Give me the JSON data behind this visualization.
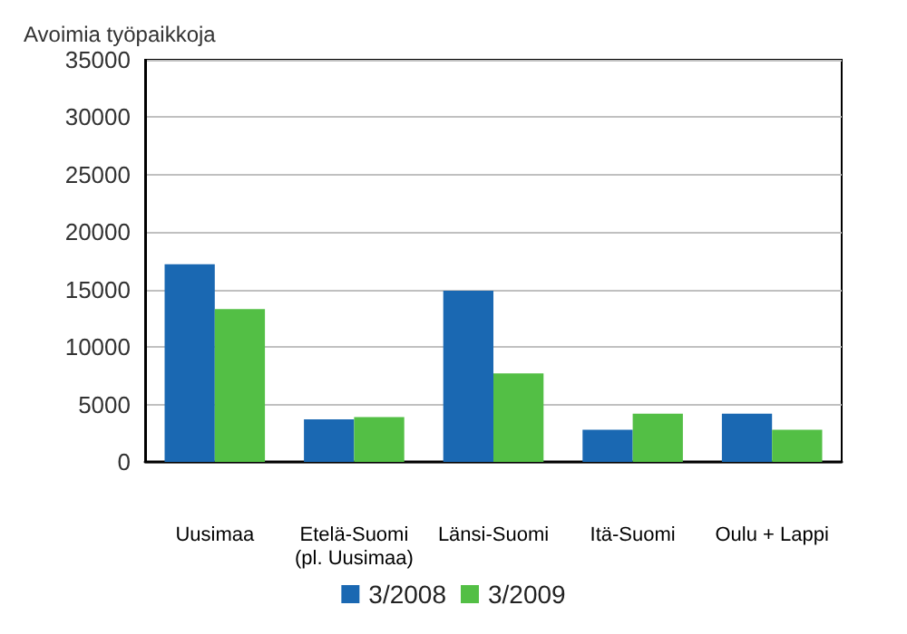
{
  "chart_data": {
    "type": "bar",
    "ylabel": "Avoimia työpaikkoja",
    "categories": [
      "Uusimaa",
      "Etelä-Suomi\n(pl. Uusimaa)",
      "Länsi-Suomi",
      "Itä-Suomi",
      "Oulu + Lappi"
    ],
    "series": [
      {
        "name": "3/2008",
        "color": "#1a68b2",
        "values": [
          17200,
          3700,
          14900,
          2800,
          4200
        ]
      },
      {
        "name": "3/2009",
        "color": "#53bf45",
        "values": [
          13300,
          3900,
          7700,
          4200,
          2800
        ]
      }
    ],
    "ylim": [
      0,
      35000
    ],
    "yticks": [
      0,
      5000,
      10000,
      15000,
      20000,
      25000,
      30000,
      35000
    ],
    "grid": "y",
    "legend": "bottom"
  }
}
